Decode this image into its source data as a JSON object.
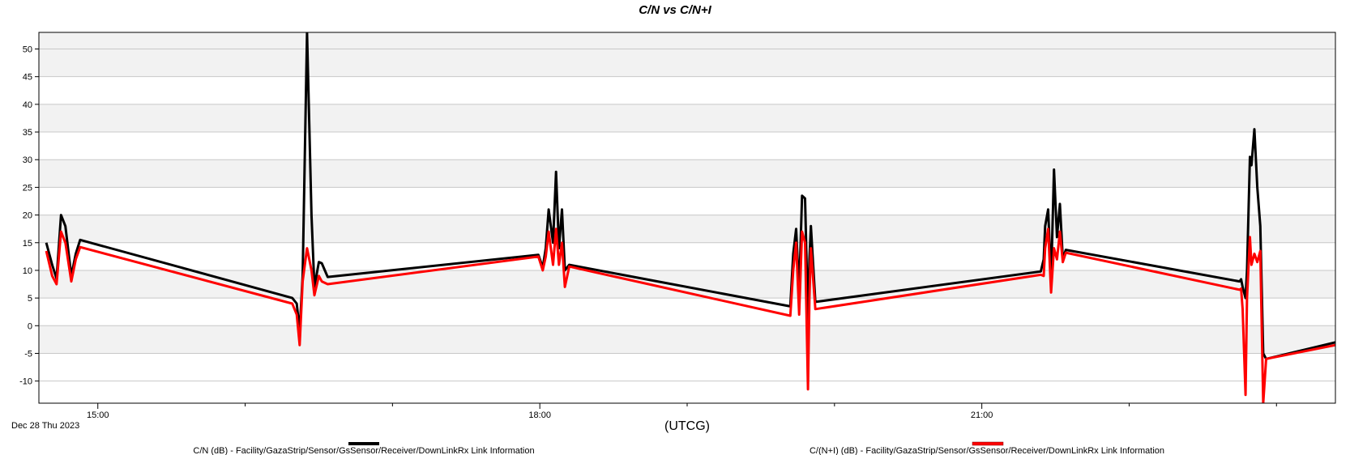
{
  "chart_data": {
    "type": "line",
    "title": "C/N vs C/N+I",
    "xlabel": "(UTCG)",
    "ylabel": "",
    "date_label": "Dec 28 Thu 2023",
    "x_tick_labels": [
      "15:00",
      "18:00",
      "21:00"
    ],
    "x_ticks_hours": [
      15,
      18,
      21
    ],
    "xlim_hours": [
      14.6,
      23.4
    ],
    "ylim": [
      -14,
      53
    ],
    "y_ticks": [
      -10,
      -5,
      0,
      5,
      10,
      15,
      20,
      25,
      30,
      35,
      40,
      45,
      50
    ],
    "grid": true,
    "legend_position": "bottom",
    "series": [
      {
        "name": "C/N (dB) - Facility/GazaStrip/Sensor/GsSensor/Receiver/DownLinkRx Link Information",
        "color": "#000000",
        "points": [
          [
            14.65,
            15
          ],
          [
            14.69,
            11
          ],
          [
            14.72,
            8.5
          ],
          [
            14.75,
            20
          ],
          [
            14.78,
            18
          ],
          [
            14.82,
            9
          ],
          [
            14.85,
            13
          ],
          [
            14.88,
            15.5
          ],
          [
            16.32,
            5
          ],
          [
            16.35,
            4
          ],
          [
            16.37,
            -1
          ],
          [
            16.39,
            9
          ],
          [
            16.42,
            53
          ],
          [
            16.45,
            20
          ],
          [
            16.47,
            7
          ],
          [
            16.5,
            11.5
          ],
          [
            16.52,
            11.3
          ],
          [
            16.56,
            8.8
          ],
          [
            17.99,
            12.8
          ],
          [
            18.02,
            10.5
          ],
          [
            18.04,
            14
          ],
          [
            18.06,
            21
          ],
          [
            18.09,
            15
          ],
          [
            18.11,
            27.8
          ],
          [
            18.13,
            14
          ],
          [
            18.15,
            21
          ],
          [
            18.17,
            10
          ],
          [
            18.2,
            11
          ],
          [
            19.7,
            3.5
          ],
          [
            19.72,
            13
          ],
          [
            19.74,
            17.5
          ],
          [
            19.76,
            6
          ],
          [
            19.78,
            23.5
          ],
          [
            19.8,
            23
          ],
          [
            19.82,
            1
          ],
          [
            19.83,
            12
          ],
          [
            19.84,
            18
          ],
          [
            19.87,
            4.3
          ],
          [
            21.4,
            9.8
          ],
          [
            21.42,
            12
          ],
          [
            21.43,
            18
          ],
          [
            21.45,
            21
          ],
          [
            21.47,
            8
          ],
          [
            21.49,
            28.2
          ],
          [
            21.51,
            16
          ],
          [
            21.53,
            22
          ],
          [
            21.55,
            12
          ],
          [
            21.57,
            13.7
          ],
          [
            22.75,
            8
          ],
          [
            22.76,
            8.4
          ],
          [
            22.77,
            7
          ],
          [
            22.79,
            5
          ],
          [
            22.8,
            10
          ],
          [
            22.82,
            30.5
          ],
          [
            22.83,
            29
          ],
          [
            22.85,
            35.5
          ],
          [
            22.87,
            25
          ],
          [
            22.89,
            18
          ],
          [
            22.91,
            -5
          ],
          [
            22.93,
            -6
          ],
          [
            23.4,
            -3
          ]
        ]
      },
      {
        "name": "C/(N+I) (dB) - Facility/GazaStrip/Sensor/GsSensor/Receiver/DownLinkRx Link Information",
        "color": "#ff0000",
        "points": [
          [
            14.65,
            13.5
          ],
          [
            14.69,
            9
          ],
          [
            14.72,
            7.5
          ],
          [
            14.75,
            17
          ],
          [
            14.78,
            15
          ],
          [
            14.82,
            8
          ],
          [
            14.85,
            12
          ],
          [
            14.88,
            14.2
          ],
          [
            16.32,
            4
          ],
          [
            16.35,
            2
          ],
          [
            16.37,
            -3.5
          ],
          [
            16.39,
            8
          ],
          [
            16.42,
            14
          ],
          [
            16.45,
            10
          ],
          [
            16.47,
            5.5
          ],
          [
            16.5,
            9
          ],
          [
            16.52,
            8
          ],
          [
            16.56,
            7.5
          ],
          [
            17.99,
            12.5
          ],
          [
            18.02,
            10
          ],
          [
            18.04,
            12.5
          ],
          [
            18.06,
            17
          ],
          [
            18.09,
            11
          ],
          [
            18.11,
            17.5
          ],
          [
            18.13,
            11
          ],
          [
            18.15,
            15
          ],
          [
            18.17,
            7
          ],
          [
            18.2,
            10.7
          ],
          [
            19.7,
            1.8
          ],
          [
            19.72,
            10
          ],
          [
            19.74,
            15
          ],
          [
            19.76,
            2
          ],
          [
            19.78,
            17
          ],
          [
            19.8,
            15
          ],
          [
            19.82,
            -11.5
          ],
          [
            19.83,
            5
          ],
          [
            19.84,
            14
          ],
          [
            19.87,
            3
          ],
          [
            21.4,
            9.2
          ],
          [
            21.42,
            9
          ],
          [
            21.43,
            14
          ],
          [
            21.45,
            17.5
          ],
          [
            21.47,
            6
          ],
          [
            21.49,
            14
          ],
          [
            21.51,
            12
          ],
          [
            21.53,
            17
          ],
          [
            21.55,
            11.5
          ],
          [
            21.57,
            13.2
          ],
          [
            22.75,
            6.5
          ],
          [
            22.76,
            6.7
          ],
          [
            22.77,
            3
          ],
          [
            22.79,
            -12.5
          ],
          [
            22.8,
            5
          ],
          [
            22.82,
            16
          ],
          [
            22.83,
            11
          ],
          [
            22.85,
            13
          ],
          [
            22.87,
            11.5
          ],
          [
            22.89,
            13.5
          ],
          [
            22.91,
            -14
          ],
          [
            22.93,
            -6
          ],
          [
            23.4,
            -3.5
          ]
        ]
      }
    ]
  }
}
